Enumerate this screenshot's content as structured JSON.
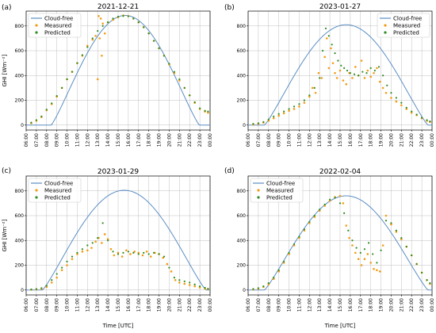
{
  "figure": {
    "background": "#ffffff"
  },
  "legend": {
    "entries": [
      {
        "key": "clear",
        "label": "Cloud-free",
        "color": "#5b8ec4",
        "kind": "line"
      },
      {
        "key": "measured",
        "label": "Measured",
        "color": "#f39c12",
        "kind": "marker"
      },
      {
        "key": "predicted",
        "label": "Predicted",
        "color": "#2e8b20",
        "kind": "marker"
      }
    ]
  },
  "chart_data": [
    {
      "type": "line",
      "panel_label": "(a)",
      "title": "2021-12-21",
      "xlabel": "",
      "ylabel": "GHI [Wm⁻²]",
      "xlim": [
        6.0,
        24.0
      ],
      "ylim": [
        -40,
        920
      ],
      "yticks": [
        0,
        200,
        400,
        600,
        800
      ],
      "xtick_labels": [
        "06:00",
        "07:00",
        "08:00",
        "09:00",
        "10:00",
        "11:00",
        "12:00",
        "13:00",
        "14:00",
        "15:00",
        "16:00",
        "17:00",
        "18:00",
        "19:00",
        "20:00",
        "21:00",
        "22:00",
        "23:00",
        "00:00"
      ],
      "grid": true,
      "legend_position": "top-left",
      "clear_sky": {
        "peak": 885,
        "peak_time": 15.7,
        "width": 14.5
      },
      "measured": {
        "x": [
          6.5,
          7.0,
          7.5,
          8.0,
          8.5,
          9.0,
          9.5,
          10.0,
          10.5,
          11.0,
          11.5,
          12.0,
          12.5,
          12.8,
          13.0,
          13.1,
          13.2,
          13.3,
          13.4,
          13.5,
          13.7,
          14.0,
          14.5,
          15.0,
          15.5,
          16.0,
          16.5,
          17.0,
          17.5,
          18.0,
          18.5,
          19.0,
          19.5,
          20.0,
          20.5,
          21.0,
          21.5,
          22.0,
          22.5,
          23.0,
          23.5,
          23.8
        ],
        "y": [
          15,
          35,
          65,
          120,
          170,
          230,
          300,
          370,
          430,
          500,
          560,
          640,
          690,
          720,
          370,
          880,
          700,
          860,
          560,
          820,
          740,
          830,
          850,
          870,
          885,
          880,
          860,
          830,
          790,
          740,
          680,
          620,
          560,
          490,
          420,
          360,
          300,
          240,
          180,
          130,
          110,
          100
        ]
      },
      "predicted": {
        "x": [
          6.5,
          7.0,
          7.5,
          8.0,
          8.5,
          9.0,
          9.5,
          10.0,
          10.5,
          11.0,
          11.5,
          12.0,
          12.5,
          13.0,
          13.5,
          14.0,
          14.5,
          15.0,
          15.5,
          16.0,
          16.5,
          17.0,
          17.5,
          18.0,
          18.5,
          19.0,
          19.5,
          20.0,
          20.5,
          21.0,
          21.5,
          22.0,
          22.5,
          23.0,
          23.5,
          23.8
        ],
        "y": [
          20,
          40,
          70,
          125,
          175,
          235,
          300,
          370,
          430,
          500,
          565,
          630,
          700,
          760,
          800,
          830,
          860,
          875,
          880,
          878,
          860,
          830,
          790,
          740,
          680,
          620,
          560,
          495,
          430,
          370,
          300,
          240,
          185,
          135,
          115,
          110
        ]
      }
    },
    {
      "type": "line",
      "panel_label": "(b)",
      "title": "2023-01-27",
      "xlabel": "",
      "ylabel": "",
      "xlim": [
        6.0,
        24.0
      ],
      "ylim": [
        -40,
        920
      ],
      "yticks": [
        0,
        200,
        400,
        600,
        800
      ],
      "xtick_labels": [
        "06:00",
        "07:00",
        "08:00",
        "09:00",
        "10:00",
        "11:00",
        "12:00",
        "13:00",
        "14:00",
        "15:00",
        "16:00",
        "17:00",
        "18:00",
        "19:00",
        "20:00",
        "21:00",
        "22:00",
        "23:00",
        "00:00"
      ],
      "grid": true,
      "legend_position": "top-right",
      "clear_sky": {
        "peak": 810,
        "peak_time": 15.6,
        "width": 16.0
      },
      "measured": {
        "x": [
          6.5,
          7.0,
          7.5,
          8.0,
          8.5,
          9.0,
          9.5,
          10.0,
          10.5,
          11.0,
          11.5,
          12.0,
          12.3,
          12.6,
          12.9,
          13.2,
          13.5,
          13.7,
          13.9,
          14.1,
          14.3,
          14.5,
          14.7,
          15.0,
          15.3,
          15.6,
          15.9,
          16.2,
          16.5,
          16.8,
          17.1,
          17.4,
          17.7,
          18.0,
          18.3,
          18.6,
          18.9,
          19.2,
          19.5,
          20.0,
          20.5,
          21.0,
          21.5,
          22.0,
          22.5,
          23.0,
          23.5,
          23.8
        ],
        "y": [
          5,
          10,
          20,
          35,
          55,
          75,
          95,
          115,
          130,
          150,
          180,
          230,
          300,
          260,
          420,
          380,
          550,
          700,
          460,
          620,
          500,
          420,
          380,
          440,
          360,
          330,
          420,
          380,
          470,
          400,
          520,
          380,
          440,
          390,
          420,
          460,
          350,
          300,
          260,
          220,
          190,
          160,
          130,
          100,
          80,
          55,
          35,
          25
        ]
      },
      "predicted": {
        "x": [
          6.5,
          7.0,
          7.5,
          8.0,
          8.5,
          9.0,
          9.5,
          10.0,
          10.5,
          11.0,
          11.5,
          12.0,
          12.5,
          13.0,
          13.3,
          13.6,
          13.9,
          14.2,
          14.5,
          14.8,
          15.1,
          15.4,
          15.7,
          16.0,
          16.4,
          16.8,
          17.2,
          17.6,
          18.0,
          18.4,
          18.8,
          19.2,
          19.6,
          20.0,
          20.5,
          21.0,
          21.5,
          22.0,
          22.5,
          23.0,
          23.5,
          23.8
        ],
        "y": [
          10,
          15,
          25,
          45,
          70,
          90,
          110,
          130,
          150,
          170,
          200,
          240,
          300,
          380,
          600,
          780,
          720,
          650,
          580,
          520,
          480,
          460,
          440,
          420,
          410,
          400,
          430,
          420,
          460,
          440,
          470,
          400,
          320,
          260,
          220,
          180,
          140,
          110,
          85,
          60,
          40,
          30
        ]
      }
    },
    {
      "type": "line",
      "panel_label": "(c)",
      "title": "2023-01-29",
      "xlabel": "Time [UTC]",
      "ylabel": "GHI [Wm⁻²]",
      "xlim": [
        6.0,
        24.0
      ],
      "ylim": [
        -40,
        920
      ],
      "yticks": [
        0,
        200,
        400,
        600,
        800
      ],
      "xtick_labels": [
        "06:00",
        "07:00",
        "08:00",
        "09:00",
        "10:00",
        "11:00",
        "12:00",
        "13:00",
        "14:00",
        "15:00",
        "16:00",
        "17:00",
        "18:00",
        "19:00",
        "20:00",
        "21:00",
        "22:00",
        "23:00",
        "00:00"
      ],
      "grid": true,
      "legend_position": "top-left",
      "clear_sky": {
        "peak": 805,
        "peak_time": 15.6,
        "width": 16.0
      },
      "measured": {
        "x": [
          6.5,
          7.0,
          7.5,
          8.0,
          8.5,
          9.0,
          9.5,
          10.0,
          10.5,
          11.0,
          11.5,
          12.0,
          12.4,
          12.8,
          13.1,
          13.4,
          13.7,
          14.0,
          14.3,
          14.6,
          15.0,
          15.4,
          15.8,
          16.2,
          16.6,
          17.0,
          17.4,
          17.8,
          18.2,
          18.6,
          19.0,
          19.4,
          19.8,
          20.2,
          20.6,
          21.0,
          21.5,
          22.0,
          22.5,
          23.0,
          23.5,
          23.8
        ],
        "y": [
          3,
          5,
          10,
          25,
          60,
          100,
          160,
          200,
          250,
          290,
          310,
          320,
          340,
          390,
          420,
          380,
          450,
          410,
          330,
          280,
          300,
          270,
          320,
          290,
          310,
          300,
          280,
          310,
          270,
          300,
          290,
          260,
          210,
          150,
          80,
          60,
          50,
          40,
          30,
          20,
          12,
          8
        ]
      },
      "predicted": {
        "x": [
          6.5,
          7.0,
          7.5,
          8.0,
          8.5,
          9.0,
          9.5,
          10.0,
          10.5,
          11.0,
          11.5,
          12.0,
          12.5,
          13.0,
          13.5,
          14.0,
          14.5,
          15.0,
          15.5,
          16.0,
          16.5,
          17.0,
          17.5,
          18.0,
          18.5,
          19.0,
          19.5,
          20.0,
          20.5,
          21.0,
          21.5,
          22.0,
          22.5,
          23.0,
          23.5,
          23.8
        ],
        "y": [
          5,
          8,
          15,
          35,
          80,
          130,
          180,
          230,
          270,
          300,
          330,
          360,
          380,
          420,
          540,
          400,
          310,
          290,
          300,
          310,
          300,
          290,
          300,
          290,
          300,
          290,
          270,
          180,
          100,
          80,
          70,
          60,
          45,
          30,
          18,
          10
        ]
      }
    },
    {
      "type": "line",
      "panel_label": "(d)",
      "title": "2022-02-04",
      "xlabel": "Time [UTC]",
      "ylabel": "",
      "xlim": [
        6.0,
        24.0
      ],
      "ylim": [
        -40,
        920
      ],
      "yticks": [
        0,
        200,
        400,
        600,
        800
      ],
      "xtick_labels": [
        "06:00",
        "07:00",
        "08:00",
        "09:00",
        "10:00",
        "11:00",
        "12:00",
        "13:00",
        "14:00",
        "15:00",
        "16:00",
        "17:00",
        "18:00",
        "19:00",
        "20:00",
        "21:00",
        "22:00",
        "23:00",
        "00:00"
      ],
      "grid": true,
      "legend_position": "top-left",
      "clear_sky": {
        "peak": 760,
        "peak_time": 15.6,
        "width": 16.0
      },
      "measured": {
        "x": [
          6.5,
          7.0,
          7.5,
          8.0,
          8.5,
          9.0,
          9.5,
          10.0,
          10.5,
          11.0,
          11.5,
          12.0,
          12.5,
          13.0,
          13.5,
          14.0,
          14.5,
          15.0,
          15.3,
          15.6,
          15.9,
          16.2,
          16.5,
          16.8,
          17.1,
          17.4,
          17.7,
          18.0,
          18.3,
          18.6,
          18.9,
          19.2,
          19.5,
          20.0,
          20.5,
          21.0,
          21.5,
          22.0,
          22.5,
          23.0,
          23.5,
          23.8
        ],
        "y": [
          5,
          10,
          25,
          45,
          90,
          150,
          220,
          290,
          360,
          420,
          480,
          540,
          590,
          640,
          680,
          720,
          750,
          760,
          700,
          520,
          420,
          360,
          300,
          250,
          200,
          250,
          290,
          220,
          170,
          160,
          150,
          360,
          600,
          530,
          470,
          410,
          350,
          280,
          210,
          140,
          80,
          50
        ]
      },
      "predicted": {
        "x": [
          6.5,
          7.0,
          7.5,
          8.0,
          8.5,
          9.0,
          9.5,
          10.0,
          10.5,
          11.0,
          11.5,
          12.0,
          12.5,
          13.0,
          13.5,
          14.0,
          14.5,
          15.0,
          15.4,
          15.8,
          16.2,
          16.6,
          17.0,
          17.4,
          17.8,
          18.2,
          18.6,
          19.0,
          19.5,
          20.0,
          20.5,
          21.0,
          21.5,
          22.0,
          22.5,
          23.0,
          23.5,
          23.8
        ],
        "y": [
          8,
          15,
          30,
          55,
          100,
          160,
          230,
          300,
          370,
          430,
          490,
          550,
          600,
          650,
          690,
          730,
          745,
          700,
          620,
          480,
          400,
          340,
          300,
          330,
          380,
          290,
          220,
          320,
          560,
          540,
          480,
          420,
          350,
          280,
          210,
          140,
          80,
          55
        ]
      }
    }
  ]
}
